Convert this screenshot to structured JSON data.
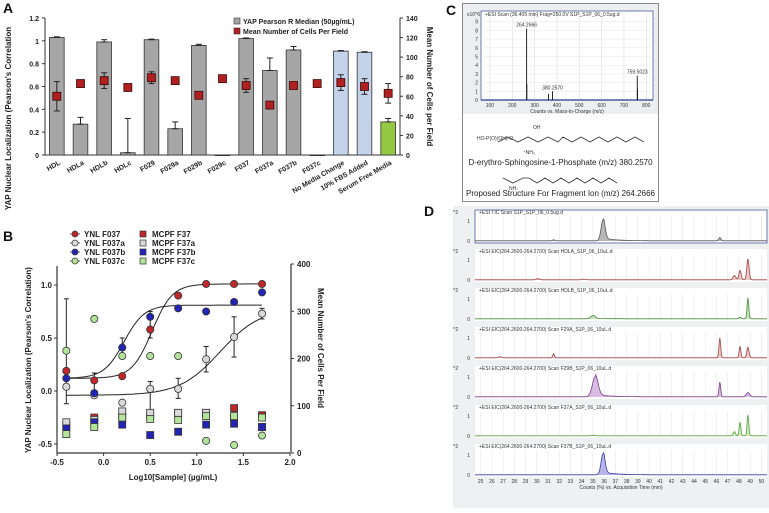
{
  "panels": {
    "A": {
      "label": "A"
    },
    "B": {
      "label": "B"
    },
    "C": {
      "label": "C"
    },
    "D": {
      "label": "D"
    }
  },
  "chart_data": [
    {
      "id": "A",
      "type": "bar",
      "title": "",
      "ylabel": "YAP Nuclear Localization (Pearson's Correlation",
      "y2label": "Mean Number of Cells per Field",
      "ylim": [
        0,
        1.2
      ],
      "y2lim": [
        0,
        140
      ],
      "yticks": [
        "0",
        "0.2",
        "0.4",
        "0.6",
        "0.8",
        "1",
        "1.2"
      ],
      "y2ticks": [
        "0",
        "20",
        "40",
        "60",
        "80",
        "100",
        "120",
        "140"
      ],
      "categories": [
        "HDL",
        "HDLa",
        "HDLb",
        "HDLc",
        "F029",
        "F029a",
        "F029b",
        "F029c",
        "F037",
        "F037a",
        "F037b",
        "F037c",
        "No Media Change",
        "10% FBS Added",
        "Serum Free Media"
      ],
      "legend": [
        "YAP Pearson R Median (50µg/mL)",
        "Mean Number of Cells Per Field"
      ],
      "legend_position": "top-right",
      "series": [
        {
          "name": "YAP Pearson R Median (50µg/mL)",
          "axis": "left",
          "values": [
            1.03,
            0.27,
            0.99,
            0.02,
            1.01,
            0.23,
            0.96,
            0.0,
            1.02,
            0.74,
            0.92,
            0.0,
            0.91,
            0.9,
            0.29
          ],
          "errors": [
            0.005,
            0.06,
            0.02,
            0.3,
            0.005,
            0.06,
            0.01,
            0,
            0.005,
            0.11,
            0.03,
            0,
            0.005,
            0.005,
            0.03
          ],
          "colors": [
            "#a6a6a6",
            "#a6a6a6",
            "#a6a6a6",
            "#a6a6a6",
            "#a6a6a6",
            "#a6a6a6",
            "#a6a6a6",
            "#a6a6a6",
            "#a6a6a6",
            "#a6a6a6",
            "#a6a6a6",
            "#a6a6a6",
            "#c5d3ea",
            "#c5d3ea",
            "#93c842"
          ]
        },
        {
          "name": "Mean Number of Cells Per Field",
          "axis": "right",
          "values": [
            60,
            73,
            76,
            69,
            79,
            76,
            61,
            78,
            71,
            51,
            71,
            73,
            74,
            70,
            63
          ],
          "errors": [
            15,
            3,
            8,
            0,
            6,
            0,
            3,
            0,
            7,
            0,
            0,
            0,
            8,
            8,
            10
          ]
        }
      ]
    },
    {
      "id": "B",
      "type": "scatter",
      "xlabel": "Log10[Sample] (µg/mL)",
      "ylabel": "YAP Nuclear Localization (Pearson's Correlation)",
      "y2label": "Mean Number of Cells Per Field",
      "xlim": [
        -0.5,
        2.0
      ],
      "ylim": [
        -0.6,
        1.2
      ],
      "y2lim": [
        0,
        400
      ],
      "xticks": [
        "-0.5",
        "0.0",
        "0.5",
        "1.0",
        "1.5",
        "2.0"
      ],
      "yticks": [
        "-0.5",
        "0.0",
        "0.5",
        "1.0"
      ],
      "y2ticks": [
        "0",
        "100",
        "200",
        "300",
        "400"
      ],
      "legend_position": "top-left",
      "x": [
        -0.4,
        -0.1,
        0.2,
        0.5,
        0.8,
        1.1,
        1.4,
        1.7
      ],
      "series": [
        {
          "name": "YNL F037",
          "marker": "circle",
          "color": "#c0272d",
          "axis": "left",
          "values": [
            0.19,
            0.1,
            0.14,
            0.58,
            0.9,
            1.01,
            1.01,
            1.01
          ],
          "fit": {
            "bottom": 0.12,
            "top": 1.01,
            "ec50": 0.52,
            "hill": 4
          }
        },
        {
          "name": "YNL F037a",
          "marker": "circle",
          "color": "#d9d9d9",
          "axis": "left",
          "values": [
            0.04,
            -0.04,
            -0.11,
            0.02,
            0.02,
            0.3,
            0.51,
            0.73
          ],
          "fit": {
            "bottom": -0.04,
            "top": 0.78,
            "ec50": 1.25,
            "hill": 2
          }
        },
        {
          "name": "YNL F037b",
          "marker": "circle",
          "color": "#2323b8",
          "axis": "left",
          "values": [
            0.12,
            -0.02,
            0.41,
            0.7,
            0.78,
            0.75,
            0.84,
            0.93
          ],
          "fit": {
            "bottom": 0.12,
            "top": 0.81,
            "ec50": 0.22,
            "hill": 4
          }
        },
        {
          "name": "YNL F037c",
          "marker": "circle",
          "color": "#b4e39a",
          "axis": "left",
          "values": [
            0.38,
            0.68,
            0.33,
            0.33,
            0.33,
            -0.47,
            -0.51,
            -0.42
          ]
        },
        {
          "name": "MCPF F37",
          "marker": "square",
          "color": "#c0272d",
          "axis": "right",
          "values": [
            58,
            75,
            78,
            78,
            85,
            85,
            95,
            80
          ]
        },
        {
          "name": "MCPF F37a",
          "marker": "square",
          "color": "#d9d9d9",
          "axis": "right",
          "values": [
            65,
            70,
            88,
            85,
            85,
            85,
            75,
            55
          ]
        },
        {
          "name": "MCPF F37b",
          "marker": "square",
          "color": "#2323b8",
          "axis": "right",
          "values": [
            52,
            65,
            60,
            38,
            45,
            60,
            62,
            55
          ]
        },
        {
          "name": "MCPF F37c",
          "marker": "square",
          "color": "#b4e39a",
          "axis": "right",
          "values": [
            40,
            55,
            75,
            72,
            70,
            78,
            78,
            75
          ]
        }
      ]
    },
    {
      "id": "C",
      "type": "bar",
      "title": "+ESI Scan (36.405 min) Frag=250.0V S1P_S1P_06_0.5ug.d",
      "y_scale_label": "x10^6",
      "xlabel": "Counts vs. Mass-to-Charge (m/z)",
      "xlim": [
        60,
        830
      ],
      "ylim": [
        0,
        10
      ],
      "xticks": [
        "100",
        "200",
        "300",
        "400",
        "500",
        "600",
        "700",
        "800"
      ],
      "yticks": [
        "0",
        "1",
        "2",
        "3",
        "4",
        "5",
        "6",
        "7",
        "8",
        "9"
      ],
      "peaks": [
        {
          "mz": 264.2666,
          "intensity": 8.2,
          "label": "264.2666"
        },
        {
          "mz": 265.27,
          "intensity": 1.8
        },
        {
          "mz": 362.3,
          "intensity": 0.7
        },
        {
          "mz": 380.257,
          "intensity": 1.0,
          "label": "380.2570"
        },
        {
          "mz": 759.5023,
          "intensity": 2.8,
          "label": "759.5023"
        },
        {
          "mz": 760.5,
          "intensity": 1.3
        }
      ]
    },
    {
      "id": "D",
      "type": "line",
      "xlabel": "Counts (%) vs. Acquisition Time (min)",
      "xlim": [
        24.5,
        50.5
      ],
      "xticks": [
        "25",
        "26",
        "27",
        "28",
        "29",
        "30",
        "31",
        "32",
        "33",
        "34",
        "35",
        "36",
        "37",
        "38",
        "39",
        "40",
        "41",
        "42",
        "43",
        "44",
        "45",
        "46",
        "47",
        "48",
        "49",
        "50"
      ],
      "y_scale_label": "x10^2",
      "yticks": [
        "0",
        "1"
      ],
      "traces": [
        {
          "title": "+ESI TIC Scan S1P_S1P_06_0.5ug.d",
          "color": "#555555",
          "fill": "#9a9a9a",
          "peaks": [
            [
              35.9,
              1.0,
              0.35
            ],
            [
              31.5,
              0.05,
              0.2
            ],
            [
              46.3,
              0.15,
              0.2
            ]
          ]
        },
        {
          "title": "+ESI EIC(264.2600-264.2700) Scan HDLA_S1P_06_10uL.d",
          "color": "#a04040",
          "fill": "#e0b0b0",
          "peaks": [
            [
              48.8,
              1.0,
              0.2
            ],
            [
              48.1,
              0.45,
              0.2
            ],
            [
              47.6,
              0.2,
              0.25
            ],
            [
              30.1,
              0.05,
              0.3
            ],
            [
              34.2,
              0.04,
              0.3
            ]
          ]
        },
        {
          "title": "+ESI EIC(264.2600-264.2700) Scan HDLB_S1P_06_10uL.d",
          "color": "#4a8a3a",
          "fill": "#a8d898",
          "peaks": [
            [
              48.8,
              1.0,
              0.15
            ],
            [
              35.0,
              0.15,
              0.4
            ],
            [
              48.1,
              0.08,
              0.2
            ]
          ]
        },
        {
          "title": "+ESI EIC(264.2600-264.2700) Scan F29A_S1P_06_10uL.d",
          "color": "#a04040",
          "fill": "#e0b0b0",
          "peaks": [
            [
              46.3,
              0.95,
              0.15
            ],
            [
              48.1,
              0.55,
              0.15
            ],
            [
              48.8,
              0.5,
              0.2
            ],
            [
              31.5,
              0.2,
              0.15
            ],
            [
              26.7,
              0.05,
              0.3
            ]
          ]
        },
        {
          "title": "+ESI EIC(264.2600-264.2700) Scan F29B_S1P_06_10uL.d",
          "color": "#7a3a8a",
          "fill": "#c8a0d8",
          "peaks": [
            [
              35.2,
              0.95,
              0.5
            ],
            [
              46.3,
              0.7,
              0.15
            ],
            [
              48.8,
              0.2,
              0.3
            ]
          ]
        },
        {
          "title": "+ESI EIC(264.2600-264.2700) Scan F37A_S1P_06_10uL.d",
          "color": "#5aa040",
          "fill": "#b8e0a0",
          "peaks": [
            [
              48.8,
              1.0,
              0.15
            ],
            [
              48.1,
              0.65,
              0.15
            ],
            [
              47.6,
              0.2,
              0.2
            ],
            [
              35.0,
              0.03,
              0.3
            ]
          ]
        },
        {
          "title": "+ESI EIC(264.2600-264.2700) Scan F37B_S1P_06_10uL.d",
          "color": "#3a3aa8",
          "fill": "#9898e0",
          "peaks": [
            [
              35.9,
              1.0,
              0.35
            ]
          ]
        }
      ]
    }
  ],
  "structures": {
    "s1p_caption": "D-erythro-Sphingosine-1-Phosphate (m/z) 380.2570",
    "fragment_caption": "Proposed Structure For Fragment Ion  (m/z) 264.2666"
  }
}
